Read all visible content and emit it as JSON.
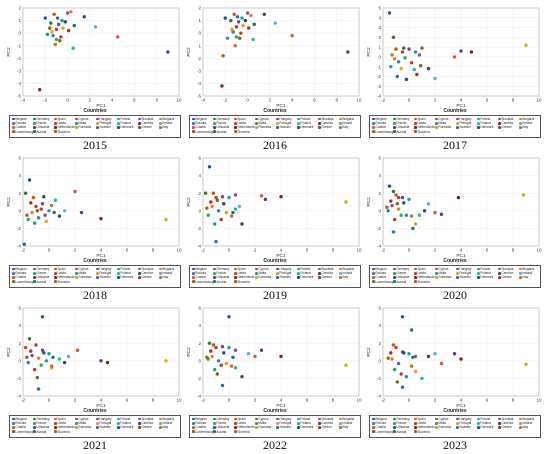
{
  "legend": {
    "title": "Countries",
    "countries": [
      "Belgium",
      "Germany",
      "Spain",
      "Cyprus",
      "Hungary",
      "Poland",
      "Slovakia",
      "Bulgaria",
      "Estonia",
      "France",
      "Latvia",
      "Malta",
      "Portugal",
      "Finland",
      "Czechia",
      "Ireland",
      "Croatia",
      "Lithuania",
      "Netherlands",
      "Romania",
      "Sweden",
      "Denmark",
      "Greece",
      "Italy",
      "Luxembourg",
      "Austria",
      "Slovenia"
    ],
    "colors": [
      "#1f4e9c",
      "#2e7d32",
      "#d35400",
      "#c0392b",
      "#7d3c98",
      "#17a589",
      "#8e44ad",
      "#e67e22",
      "#2980b9",
      "#27ae60",
      "#c0392b",
      "#16a085",
      "#f39c12",
      "#1abc9c",
      "#34495e",
      "#5dade2",
      "#e74c3c",
      "#6c3483",
      "#7b241c",
      "#d4ac0d",
      "#2471a3",
      "#1a5276",
      "#a93226",
      "#ca6f1e",
      "#7d6608",
      "#117a65",
      "#9c640c"
    ]
  },
  "chart_data": [
    {
      "type": "scatter",
      "year_label": "2015",
      "xlabel": "PC1",
      "ylabel": "PC2",
      "xlim": [
        -4,
        10
      ],
      "ylim": [
        -5,
        2
      ],
      "xticks": [
        -4,
        -2,
        0,
        2,
        4,
        6,
        8,
        10
      ],
      "yticks": [
        -5,
        -4,
        -3,
        -2,
        -1,
        0,
        1,
        2
      ],
      "points": [
        [
          -2,
          1.2
        ],
        [
          -1.5,
          0.8
        ],
        [
          -1.2,
          1.5
        ],
        [
          -1,
          0.3
        ],
        [
          -0.8,
          0.7
        ],
        [
          -0.5,
          1.0
        ],
        [
          0,
          1.6
        ],
        [
          0.3,
          1.7
        ],
        [
          -1.3,
          -0.2
        ],
        [
          -1.0,
          -0.5
        ],
        [
          -0.6,
          -0.3
        ],
        [
          -1.8,
          -0.1
        ],
        [
          -0.4,
          0.4
        ],
        [
          0.5,
          -1.2
        ],
        [
          1.5,
          1.3
        ],
        [
          2.5,
          0.5
        ],
        [
          4.5,
          -0.3
        ],
        [
          9,
          -1.5
        ],
        [
          -2.5,
          -4.5
        ],
        [
          -1.4,
          0.1
        ],
        [
          -0.9,
          1.2
        ],
        [
          -0.2,
          0.9
        ],
        [
          0.1,
          0.2
        ],
        [
          -1.1,
          -0.9
        ],
        [
          -0.7,
          -0.6
        ],
        [
          0.6,
          0.6
        ],
        [
          -1.6,
          0.4
        ]
      ]
    },
    {
      "type": "scatter",
      "year_label": "2016",
      "xlabel": "PC1",
      "ylabel": "PC2",
      "xlim": [
        -4,
        10
      ],
      "ylim": [
        -5,
        2
      ],
      "xticks": [
        -4,
        -2,
        0,
        2,
        4,
        6,
        8,
        10
      ],
      "yticks": [
        -5,
        -4,
        -3,
        -2,
        -1,
        0,
        1,
        2
      ],
      "points": [
        [
          -2,
          1.2
        ],
        [
          -1.5,
          1.0
        ],
        [
          -1.2,
          1.5
        ],
        [
          -1,
          0.5
        ],
        [
          -0.8,
          0.9
        ],
        [
          -0.5,
          1.2
        ],
        [
          0,
          1.6
        ],
        [
          0.3,
          1.4
        ],
        [
          -1.3,
          0.1
        ],
        [
          -1.0,
          -0.3
        ],
        [
          -0.6,
          0
        ],
        [
          -1.8,
          -0.4
        ],
        [
          -0.4,
          0.6
        ],
        [
          0.5,
          -0.5
        ],
        [
          1.5,
          1.5
        ],
        [
          2.5,
          0.8
        ],
        [
          4,
          -0.2
        ],
        [
          9,
          -1.5
        ],
        [
          -2.3,
          -4.2
        ],
        [
          -1.4,
          0.3
        ],
        [
          -0.9,
          1.3
        ],
        [
          -0.2,
          1.0
        ],
        [
          0.1,
          0.4
        ],
        [
          -1.1,
          -1.0
        ],
        [
          -0.7,
          -0.4
        ],
        [
          0.6,
          0.7
        ],
        [
          -2.2,
          -1.8
        ]
      ]
    },
    {
      "type": "scatter",
      "year_label": "2017",
      "xlabel": "PC1",
      "ylabel": "PC2",
      "xlim": [
        -2,
        10
      ],
      "ylim": [
        -4,
        5
      ],
      "xticks": [
        -2,
        0,
        2,
        4,
        6,
        8,
        10
      ],
      "yticks": [
        -4,
        -3,
        -2,
        -1,
        0,
        1,
        2,
        3,
        4,
        5
      ],
      "points": [
        [
          -1.5,
          4.5
        ],
        [
          -1.2,
          2
        ],
        [
          -1,
          0.8
        ],
        [
          -0.5,
          0.5
        ],
        [
          0,
          0.8
        ],
        [
          0.5,
          0.5
        ],
        [
          0.8,
          0.2
        ],
        [
          -1.1,
          -0.2
        ],
        [
          -0.8,
          -0.5
        ],
        [
          -0.3,
          -0.1
        ],
        [
          0.2,
          -0.6
        ],
        [
          -1.4,
          -1
        ],
        [
          -0.6,
          -1.2
        ],
        [
          0.4,
          -1.3
        ],
        [
          1.5,
          -1.2
        ],
        [
          2,
          -2.2
        ],
        [
          3.5,
          0
        ],
        [
          4,
          0.6
        ],
        [
          4.8,
          0.5
        ],
        [
          9,
          1.2
        ],
        [
          -0.9,
          -2
        ],
        [
          -0.2,
          -2.3
        ],
        [
          0.6,
          -1.8
        ],
        [
          -1.3,
          0.2
        ],
        [
          0.9,
          -0.9
        ],
        [
          -0.4,
          0.9
        ],
        [
          1,
          0.9
        ]
      ]
    },
    {
      "type": "scatter",
      "year_label": "2018",
      "xlabel": "PC1",
      "ylabel": "PC2",
      "xlim": [
        -2,
        10
      ],
      "ylim": [
        -4,
        6
      ],
      "xticks": [
        -2,
        0,
        2,
        4,
        6,
        8,
        10
      ],
      "yticks": [
        -4,
        -2,
        0,
        2,
        4,
        6
      ],
      "points": [
        [
          -1.5,
          3.5
        ],
        [
          -1.8,
          2
        ],
        [
          -1.2,
          1.5
        ],
        [
          -1,
          0.5
        ],
        [
          -0.5,
          0.8
        ],
        [
          0,
          0
        ],
        [
          -0.3,
          -0.5
        ],
        [
          -1.3,
          -0.2
        ],
        [
          -0.8,
          -0.8
        ],
        [
          -1.6,
          -1
        ],
        [
          -0.6,
          0.2
        ],
        [
          -1.1,
          -1.4
        ],
        [
          -0.2,
          -1.2
        ],
        [
          0.5,
          1.2
        ],
        [
          0.8,
          -0.6
        ],
        [
          1.2,
          0
        ],
        [
          2,
          2.2
        ],
        [
          2.5,
          -0.2
        ],
        [
          4,
          -0.9
        ],
        [
          9,
          -1
        ],
        [
          -1.9,
          -3.8
        ],
        [
          -0.4,
          1.6
        ],
        [
          -1.4,
          0.9
        ],
        [
          0.2,
          0.6
        ],
        [
          -0.9,
          0
        ],
        [
          0.4,
          -0.2
        ],
        [
          -1.7,
          -0.5
        ]
      ]
    },
    {
      "type": "scatter",
      "year_label": "2019",
      "xlabel": "PC1",
      "ylabel": "PC2",
      "xlim": [
        -2,
        10
      ],
      "ylim": [
        -4,
        6
      ],
      "xticks": [
        -2,
        0,
        2,
        4,
        6,
        8,
        10
      ],
      "yticks": [
        -4,
        -2,
        0,
        2,
        4,
        6
      ],
      "points": [
        [
          -1.5,
          5
        ],
        [
          -1.8,
          2
        ],
        [
          -1.2,
          2
        ],
        [
          -1,
          1.5
        ],
        [
          -0.5,
          1.6
        ],
        [
          0,
          1.5
        ],
        [
          0.5,
          1.8
        ],
        [
          -1.3,
          0.5
        ],
        [
          -0.8,
          0
        ],
        [
          -1.6,
          -0.5
        ],
        [
          -0.6,
          -1
        ],
        [
          -1.1,
          -1.5
        ],
        [
          -0.2,
          -0.2
        ],
        [
          0.5,
          0.2
        ],
        [
          1,
          -1.5
        ],
        [
          0.8,
          0.5
        ],
        [
          2.5,
          1.7
        ],
        [
          2.8,
          1.3
        ],
        [
          4,
          1.6
        ],
        [
          9,
          1
        ],
        [
          -1,
          -3.5
        ],
        [
          -0.4,
          0.8
        ],
        [
          -1.4,
          1
        ],
        [
          0.2,
          -0.6
        ],
        [
          -0.9,
          1.2
        ],
        [
          0.3,
          -0.2
        ],
        [
          -1.7,
          0.3
        ]
      ]
    },
    {
      "type": "scatter",
      "year_label": "2020",
      "xlabel": "PC1",
      "ylabel": "PC2",
      "xlim": [
        -2,
        10
      ],
      "ylim": [
        -4,
        6
      ],
      "xticks": [
        -2,
        0,
        2,
        4,
        6,
        8,
        10
      ],
      "yticks": [
        -4,
        -2,
        0,
        2,
        4,
        6
      ],
      "points": [
        [
          -1.5,
          2.8
        ],
        [
          -1.2,
          2.2
        ],
        [
          -1,
          1.8
        ],
        [
          -0.8,
          1.5
        ],
        [
          -0.5,
          1.5
        ],
        [
          0,
          1.3
        ],
        [
          -1.3,
          0.6
        ],
        [
          -0.8,
          0.2
        ],
        [
          -1.6,
          0
        ],
        [
          -0.6,
          -0.5
        ],
        [
          -1.1,
          -1
        ],
        [
          -0.2,
          -0.5
        ],
        [
          0.5,
          -1.5
        ],
        [
          0.8,
          -0.5
        ],
        [
          1.2,
          0
        ],
        [
          1.5,
          0.8
        ],
        [
          2,
          -0.2
        ],
        [
          2.5,
          -0.4
        ],
        [
          3.8,
          1.5
        ],
        [
          8.8,
          1.8
        ],
        [
          -1.2,
          -2.4
        ],
        [
          -0.4,
          0.9
        ],
        [
          -1.4,
          1.1
        ],
        [
          0.2,
          -0.6
        ],
        [
          -0.9,
          0.8
        ],
        [
          0.3,
          -2
        ],
        [
          -1.7,
          0.4
        ]
      ]
    },
    {
      "type": "scatter",
      "year_label": "2021",
      "xlabel": "PC1",
      "ylabel": "PC2",
      "xlim": [
        -2,
        10
      ],
      "ylim": [
        -4,
        6
      ],
      "xticks": [
        -2,
        0,
        2,
        4,
        6,
        8,
        10
      ],
      "yticks": [
        -4,
        -2,
        0,
        2,
        4,
        6
      ],
      "points": [
        [
          -0.5,
          5
        ],
        [
          -1.5,
          2.5
        ],
        [
          -1.8,
          1.5
        ],
        [
          -1,
          1.8
        ],
        [
          -0.5,
          1.2
        ],
        [
          0,
          0.8
        ],
        [
          -1.3,
          0.6
        ],
        [
          -0.8,
          0.3
        ],
        [
          -1.6,
          -0.2
        ],
        [
          -0.6,
          -0.5
        ],
        [
          -1.1,
          -1
        ],
        [
          -0.2,
          0
        ],
        [
          0.2,
          -0.8
        ],
        [
          0.8,
          0.2
        ],
        [
          1.2,
          -0.2
        ],
        [
          1.5,
          0.5
        ],
        [
          2.2,
          1.2
        ],
        [
          4,
          0
        ],
        [
          4.5,
          -0.2
        ],
        [
          9,
          0
        ],
        [
          -0.8,
          -3.2
        ],
        [
          -0.4,
          0.9
        ],
        [
          -1.4,
          1.1
        ],
        [
          0.2,
          -0.6
        ],
        [
          -0.9,
          -1.9
        ],
        [
          0.3,
          0.4
        ],
        [
          -1.7,
          0.4
        ]
      ]
    },
    {
      "type": "scatter",
      "year_label": "2022",
      "xlabel": "PC1",
      "ylabel": "PC2",
      "xlim": [
        -2,
        10
      ],
      "ylim": [
        -4,
        6
      ],
      "xticks": [
        -2,
        0,
        2,
        4,
        6,
        8,
        10
      ],
      "yticks": [
        -4,
        -2,
        0,
        2,
        4,
        6
      ],
      "points": [
        [
          0,
          5
        ],
        [
          -1.5,
          2
        ],
        [
          -1.2,
          1.8
        ],
        [
          -1,
          1.5
        ],
        [
          -0.5,
          1.6
        ],
        [
          0,
          1.5
        ],
        [
          0.5,
          1.2
        ],
        [
          -1.3,
          0.5
        ],
        [
          -0.8,
          0
        ],
        [
          -1.6,
          0.2
        ],
        [
          -0.6,
          -0.5
        ],
        [
          -1.1,
          -1
        ],
        [
          -0.2,
          -0.3
        ],
        [
          0.5,
          -0.8
        ],
        [
          1,
          -1.8
        ],
        [
          1.5,
          0.8
        ],
        [
          2,
          0.5
        ],
        [
          2.5,
          1.2
        ],
        [
          4,
          0.5
        ],
        [
          9,
          -0.5
        ],
        [
          -0.5,
          -2.8
        ],
        [
          -0.4,
          0.9
        ],
        [
          -1.4,
          1.1
        ],
        [
          0.2,
          -0.6
        ],
        [
          -0.9,
          -1.5
        ],
        [
          0.3,
          0.4
        ],
        [
          -1.7,
          0.4
        ]
      ]
    },
    {
      "type": "scatter",
      "year_label": "2023",
      "xlabel": "PC1",
      "ylabel": "PC2",
      "xlim": [
        -2,
        10
      ],
      "ylim": [
        -4,
        6
      ],
      "xticks": [
        -2,
        0,
        2,
        4,
        6,
        8,
        10
      ],
      "yticks": [
        -4,
        -2,
        0,
        2,
        4,
        6
      ],
      "points": [
        [
          -0.5,
          5
        ],
        [
          0.2,
          3.5
        ],
        [
          -1.2,
          1.8
        ],
        [
          -1,
          1.5
        ],
        [
          -0.5,
          1.0
        ],
        [
          0,
          0.8
        ],
        [
          0.5,
          0.5
        ],
        [
          -1.3,
          0.2
        ],
        [
          -0.8,
          -0.3
        ],
        [
          -1.1,
          -1
        ],
        [
          -0.6,
          -1.5
        ],
        [
          -0.2,
          -1.8
        ],
        [
          0.5,
          -1.2
        ],
        [
          1,
          -2
        ],
        [
          1.5,
          0.5
        ],
        [
          2,
          0.8
        ],
        [
          2.5,
          -0.3
        ],
        [
          3.5,
          0.8
        ],
        [
          4,
          0.2
        ],
        [
          9,
          -0.4
        ],
        [
          -0.5,
          -3
        ],
        [
          -0.4,
          0.9
        ],
        [
          -1.4,
          0.9
        ],
        [
          0.2,
          -0.6
        ],
        [
          -0.9,
          -2.4
        ],
        [
          0.3,
          0.4
        ],
        [
          -1.6,
          0.3
        ]
      ]
    }
  ]
}
